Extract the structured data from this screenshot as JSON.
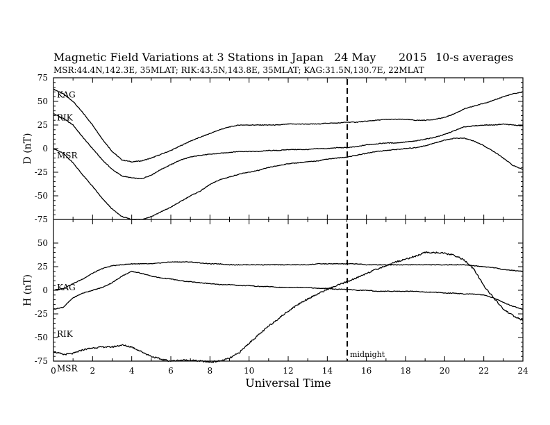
{
  "chart_data": [
    {
      "type": "line",
      "title": "Magnetic Field Variations at 3 Stations in Japan",
      "date": "24 May",
      "year": "2015",
      "averaging": "10-s averages",
      "subtitle": "MSR:44.4N,142.3E, 35MLAT;  RIK:43.5N,143.8E, 35MLAT;  KAG:31.5N,130.7E, 22MLAT",
      "ylabel": "D (nT)",
      "xlabel": "",
      "ylim": [
        -75,
        75
      ],
      "xlim": [
        0,
        24
      ],
      "yticks": [
        "75",
        "50",
        "25",
        "0",
        "-25",
        "-50",
        "-75"
      ],
      "grid": false,
      "x": [
        0,
        0.5,
        1,
        1.5,
        2,
        2.5,
        3,
        3.5,
        4,
        4.5,
        5,
        5.5,
        6,
        6.5,
        7,
        7.5,
        8,
        8.5,
        9,
        9.5,
        10,
        10.5,
        11,
        11.5,
        12,
        12.5,
        13,
        13.5,
        14,
        14.5,
        15,
        15.5,
        16,
        16.5,
        17,
        17.5,
        18,
        18.5,
        19,
        19.5,
        20,
        20.5,
        21,
        21.5,
        22,
        22.5,
        23,
        23.5,
        24
      ],
      "series": [
        {
          "name": "KAG",
          "values": [
            63,
            58,
            50,
            38,
            25,
            10,
            -3,
            -12,
            -14,
            -13,
            -10,
            -6,
            -2,
            3,
            8,
            12,
            16,
            20,
            23,
            25,
            25,
            25,
            25,
            25,
            26,
            26,
            26,
            26,
            27,
            27,
            28,
            28,
            29,
            30,
            31,
            31,
            31,
            30,
            30,
            31,
            33,
            37,
            42,
            45,
            48,
            51,
            55,
            58,
            60
          ]
        },
        {
          "name": "RIK",
          "values": [
            37,
            32,
            25,
            12,
            0,
            -12,
            -22,
            -29,
            -31,
            -32,
            -28,
            -22,
            -17,
            -12,
            -9,
            -7,
            -6,
            -5,
            -4,
            -3,
            -3,
            -3,
            -2,
            -2,
            -1,
            -1,
            -1,
            0,
            0,
            1,
            1,
            2,
            4,
            5,
            6,
            6,
            7,
            8,
            10,
            12,
            15,
            19,
            23,
            24,
            25,
            25,
            26,
            25,
            24
          ]
        },
        {
          "name": "MSR",
          "values": [
            0,
            -5,
            -15,
            -28,
            -40,
            -53,
            -64,
            -72,
            -75,
            -75,
            -72,
            -67,
            -62,
            -56,
            -50,
            -45,
            -38,
            -33,
            -30,
            -27,
            -25,
            -23,
            -20,
            -18,
            -16,
            -15,
            -14,
            -13,
            -11,
            -10,
            -9,
            -7,
            -5,
            -3,
            -2,
            -1,
            0,
            1,
            3,
            6,
            9,
            11,
            11,
            8,
            3,
            -3,
            -10,
            -18,
            -22
          ]
        }
      ],
      "labels": [
        "KAG",
        "RIK",
        "MSR"
      ]
    },
    {
      "type": "line",
      "ylabel": "H (nT)",
      "xlabel": "Universal Time",
      "ylim": [
        -75,
        75
      ],
      "xlim": [
        0,
        24
      ],
      "yticks": [
        "50",
        "25",
        "0",
        "-25",
        "-50",
        "-75"
      ],
      "xticks": [
        "0",
        "2",
        "4",
        "6",
        "8",
        "10",
        "12",
        "14",
        "16",
        "18",
        "20",
        "22",
        "24"
      ],
      "grid": false,
      "x": [
        0,
        0.5,
        1,
        1.5,
        2,
        2.5,
        3,
        3.5,
        4,
        4.5,
        5,
        5.5,
        6,
        6.5,
        7,
        7.5,
        8,
        8.5,
        9,
        9.5,
        10,
        10.5,
        11,
        11.5,
        12,
        12.5,
        13,
        13.5,
        14,
        14.5,
        15,
        15.5,
        16,
        16.5,
        17,
        17.5,
        18,
        18.5,
        19,
        19.5,
        20,
        20.5,
        21,
        21.5,
        22,
        22.5,
        23,
        23.5,
        24
      ],
      "series": [
        {
          "name": "KAG",
          "values": [
            0,
            2,
            7,
            12,
            18,
            23,
            26,
            27,
            28,
            28,
            28,
            29,
            30,
            30,
            30,
            29,
            28,
            28,
            27,
            27,
            27,
            27,
            27,
            27,
            27,
            27,
            27,
            28,
            28,
            28,
            28,
            28,
            27,
            27,
            27,
            27,
            27,
            27,
            27,
            27,
            27,
            27,
            27,
            26,
            25,
            24,
            22,
            21,
            20
          ]
        },
        {
          "name": "RIK",
          "values": [
            -20,
            -18,
            -8,
            -3,
            0,
            3,
            8,
            15,
            20,
            18,
            15,
            13,
            12,
            10,
            9,
            8,
            7,
            6,
            6,
            5,
            5,
            4,
            4,
            3,
            3,
            3,
            3,
            2,
            2,
            1,
            1,
            0,
            0,
            -1,
            -1,
            -1,
            -1,
            -1,
            -2,
            -2,
            -3,
            -3,
            -4,
            -4,
            -5,
            -8,
            -13,
            -17,
            -20
          ]
        },
        {
          "name": "MSR",
          "values": [
            -65,
            -68,
            -67,
            -63,
            -61,
            -60,
            -60,
            -58,
            -60,
            -65,
            -70,
            -73,
            -75,
            -74,
            -74,
            -75,
            -76,
            -75,
            -72,
            -66,
            -56,
            -47,
            -38,
            -30,
            -22,
            -15,
            -9,
            -4,
            1,
            5,
            9,
            13,
            18,
            22,
            26,
            30,
            33,
            36,
            40,
            40,
            39,
            37,
            32,
            22,
            5,
            -8,
            -20,
            -27,
            -32
          ]
        }
      ],
      "labels": [
        "KAG",
        "RIK",
        "MSR"
      ],
      "annotations": [
        {
          "text": "midnight",
          "x": 15
        }
      ]
    }
  ]
}
